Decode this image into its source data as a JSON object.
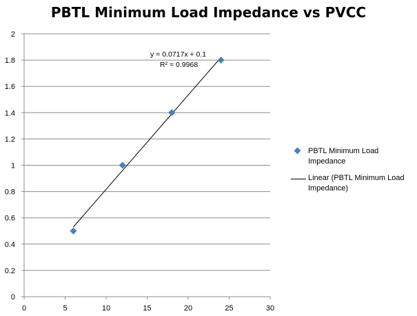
{
  "chart_data": {
    "type": "scatter",
    "title": "PBTL Minimum Load Impedance vs PVCC",
    "xlabel": "",
    "ylabel": "",
    "xlim": [
      0,
      30
    ],
    "ylim": [
      0,
      2
    ],
    "x_ticks": [
      "0",
      "5",
      "10",
      "15",
      "20",
      "25",
      "30"
    ],
    "y_ticks": [
      "0",
      "0.2",
      "0.4",
      "0.6",
      "0.8",
      "1",
      "1.2",
      "1.4",
      "1.6",
      "1.8",
      "2"
    ],
    "grid": "horizontal",
    "legend_position": "right",
    "series": [
      {
        "name": "PBTL Minimum Load Impedance",
        "x": [
          6,
          12,
          18,
          24
        ],
        "y": [
          0.5,
          1.0,
          1.4,
          1.8
        ],
        "color": "#4a7ebb",
        "marker": "diamond"
      }
    ],
    "trendline": {
      "name": "Linear (PBTL Minimum Load Impedance)",
      "slope": 0.0717,
      "intercept": 0.1,
      "x_range": [
        6,
        24
      ],
      "color": "#000000"
    },
    "annotations": {
      "equation": "y = 0.0717x + 0.1",
      "r_squared": "R² = 0.9968"
    }
  },
  "legend": {
    "items": [
      {
        "label": "PBTL Minimum Load Impedance"
      },
      {
        "label": "Linear (PBTL Minimum Load Impedance)"
      }
    ]
  }
}
